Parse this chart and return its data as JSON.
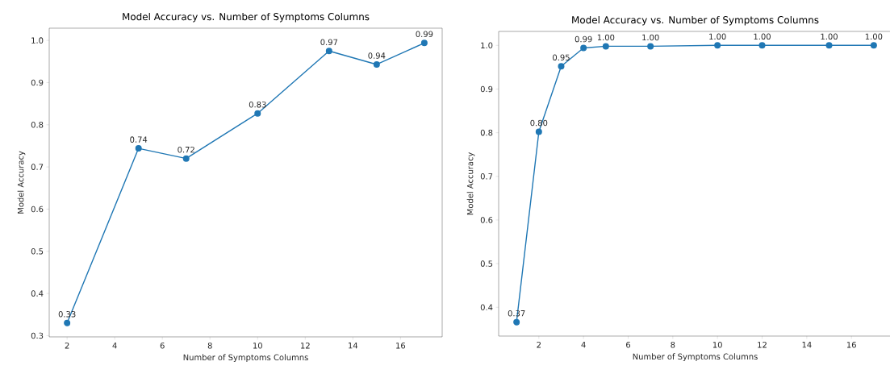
{
  "chart_data": [
    {
      "type": "line",
      "title": "Model Accuracy vs. Number of Symptoms Columns",
      "xlabel": "Number of Symptoms Columns",
      "ylabel": "Model Accuracy",
      "x": [
        2,
        5,
        7,
        10,
        13,
        15,
        17
      ],
      "series": [
        {
          "color": "#1f77b4",
          "values": [
            0.33,
            0.744,
            0.72,
            0.827,
            0.975,
            0.943,
            0.994
          ],
          "value_labels": [
            "0.33",
            "0.74",
            "0.72",
            "0.83",
            "0.97",
            "0.94",
            "0.99"
          ]
        }
      ],
      "xlim": [
        1.25,
        17.75
      ],
      "ylim": [
        0.297,
        1.029
      ],
      "xticks": [
        2,
        4,
        6,
        8,
        10,
        12,
        14,
        16
      ],
      "yticks": [
        0.3,
        0.4,
        0.5,
        0.6,
        0.7,
        0.8,
        0.9,
        {
          "value": 1,
          "label": "1.0"
        }
      ],
      "marker": "circle"
    },
    {
      "type": "line",
      "title": "Model Accuracy vs. Number of Symptoms Columns",
      "xlabel": "Number of Symptoms Columns",
      "ylabel": "Model Accuracy",
      "x": [
        1,
        2,
        3,
        4,
        5,
        7,
        10,
        12,
        15,
        17
      ],
      "series": [
        {
          "color": "#1f77b4",
          "values": [
            0.366,
            0.802,
            0.952,
            0.994,
            0.998,
            0.998,
            1.0,
            1.0,
            1.0,
            1.0
          ],
          "value_labels": [
            "0.37",
            "0.80",
            "0.95",
            "0.99",
            "1.00",
            "1.00",
            "1.00",
            "1.00",
            "1.00",
            "1.00"
          ]
        }
      ],
      "xlim": [
        0.2,
        17.8
      ],
      "ylim": [
        0.334,
        1.032
      ],
      "xticks": [
        2,
        4,
        6,
        8,
        10,
        12,
        14,
        16
      ],
      "yticks": [
        0.4,
        0.5,
        0.6,
        0.7,
        0.8,
        0.9,
        {
          "value": 1,
          "label": "1.0"
        }
      ],
      "marker": "circle"
    }
  ]
}
